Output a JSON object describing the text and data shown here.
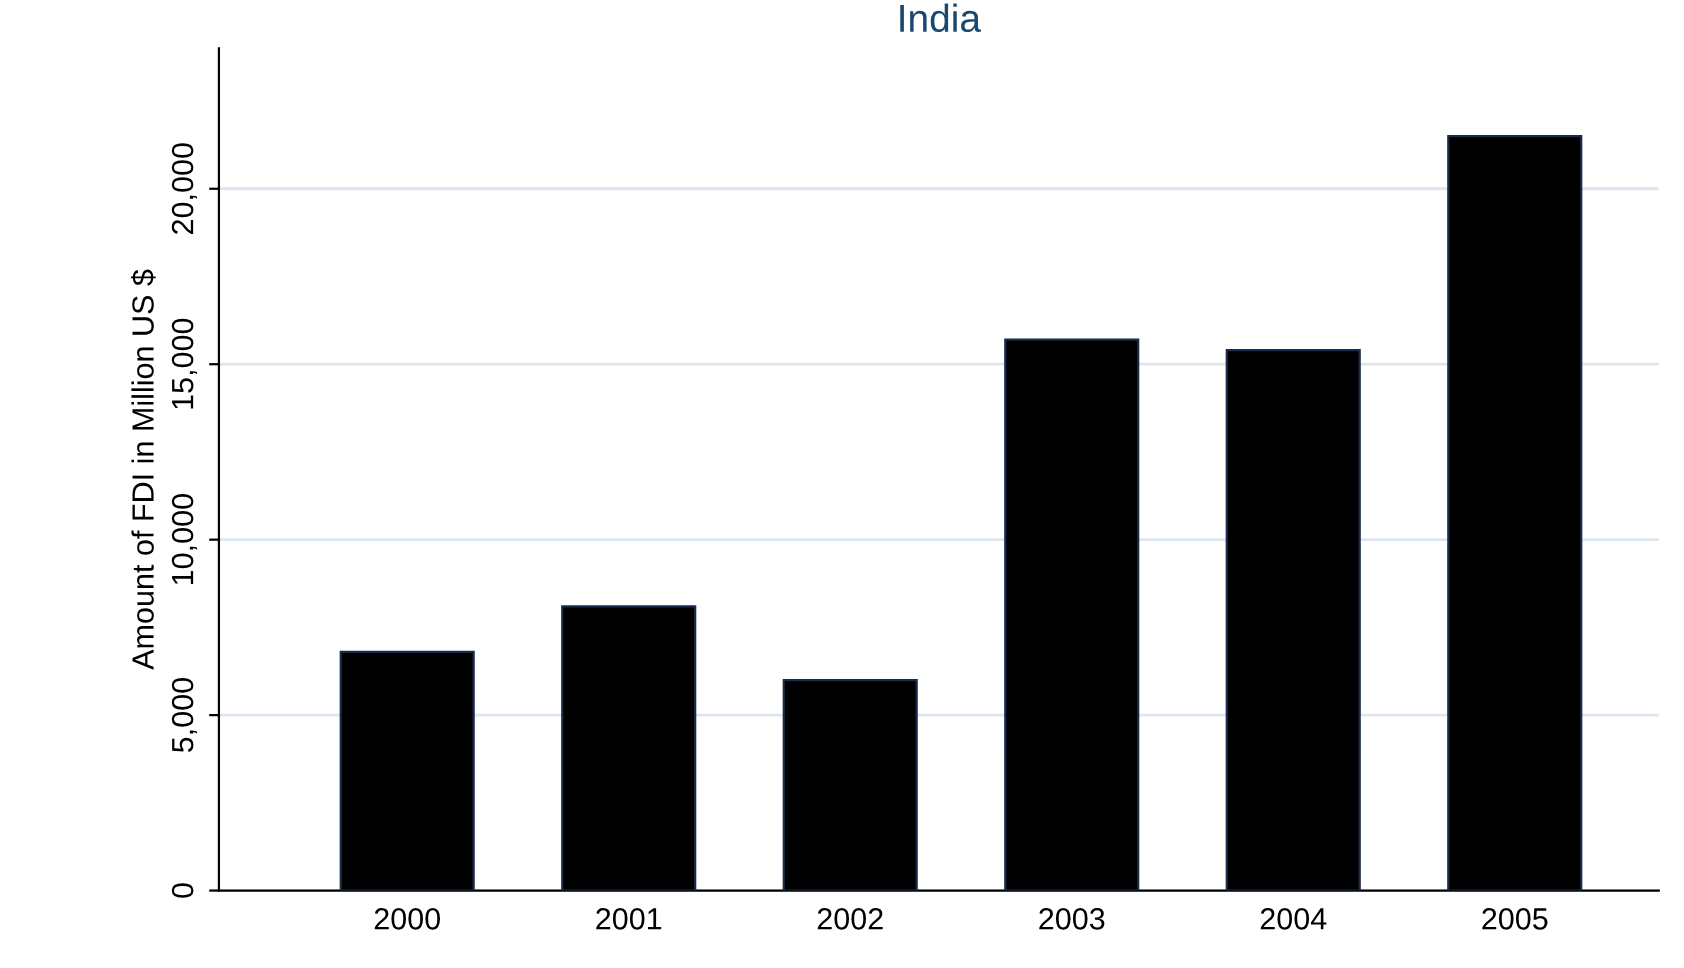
{
  "chart_data": {
    "type": "bar",
    "title": "India",
    "ylabel": "Amount of FDI in Million US $",
    "categories": [
      "2000",
      "2001",
      "2002",
      "2003",
      "2004",
      "2005"
    ],
    "values": [
      6800,
      8100,
      6000,
      15700,
      15400,
      21500
    ],
    "color": "#000000",
    "ylim": [
      0,
      24000
    ],
    "yticks": [
      0,
      {
        "value": 5000,
        "label": "5,000"
      },
      {
        "value": 10000,
        "label": "10,000"
      },
      {
        "value": 15000,
        "label": "15,000"
      },
      {
        "value": 20000,
        "label": "20,000"
      }
    ],
    "grid": "y",
    "legend": false
  }
}
